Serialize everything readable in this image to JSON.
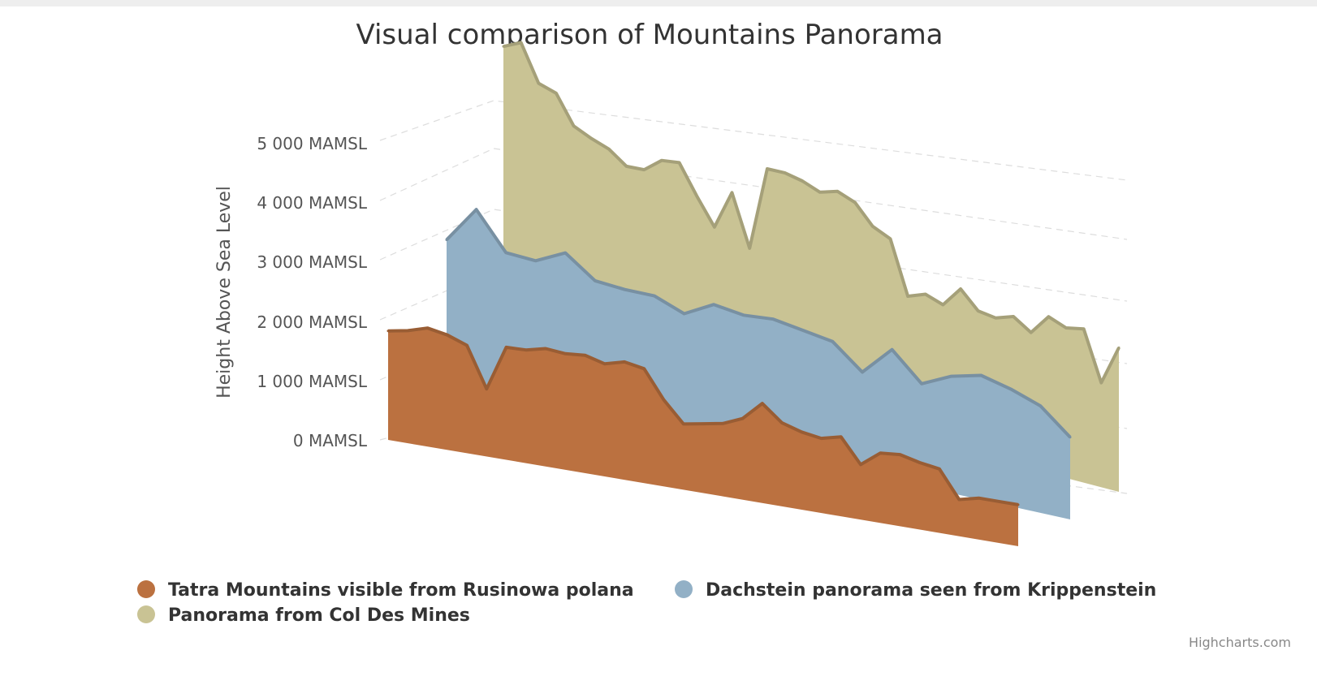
{
  "chart_data": {
    "type": "area",
    "title": "Visual comparison of Mountains Panorama",
    "ylabel": "Height Above Sea Level",
    "yticks": [
      "0 MAMSL",
      "1 000 MAMSL",
      "2 000 MAMSL",
      "3 000 MAMSL",
      "4 000 MAMSL",
      "5 000 MAMSL"
    ],
    "ylim": [
      0,
      5000
    ],
    "grid": true,
    "legend_position": "bottom",
    "series": [
      {
        "name": "Tatra Mountains visible from Rusinowa polana",
        "color": "#BB7140",
        "values": [
          1840,
          1900,
          2000,
          1940,
          1820,
          1140,
          1900,
          1910,
          1990,
          1960,
          1990,
          1900,
          1990,
          1930,
          1460,
          1110,
          1170,
          1230,
          1370,
          1680,
          1410,
          1310,
          1260,
          1340,
          930,
          1180,
          1210,
          1130,
          1080,
          620,
          700,
          700,
          700
        ]
      },
      {
        "name": "Dachstein panorama seen from Krippenstein",
        "color": "#92B0C6",
        "values": [
          2390,
          3010,
          2390,
          2360,
          2600,
          2240,
          2200,
          2200,
          2010,
          2270,
          2200,
          2240,
          2160,
          2080,
          1680,
          2160,
          1700,
          1930,
          2050,
          1930,
          1760,
          1350
        ]
      },
      {
        "name": "Panorama from Col Des Mines",
        "color": "#C9C394",
        "values": [
          4740,
          4880,
          4280,
          4190,
          3720,
          3590,
          3490,
          3280,
          3300,
          3530,
          3570,
          3090,
          2650,
          3300,
          2450,
          3850,
          3860,
          3800,
          3690,
          3780,
          3670,
          3350,
          3220,
          2340,
          2450,
          2350,
          2690,
          2400,
          2360,
          2460,
          2270,
          2610,
          2500,
          2560,
          1740,
          2400
        ]
      }
    ]
  },
  "credits": "Highcharts.com"
}
